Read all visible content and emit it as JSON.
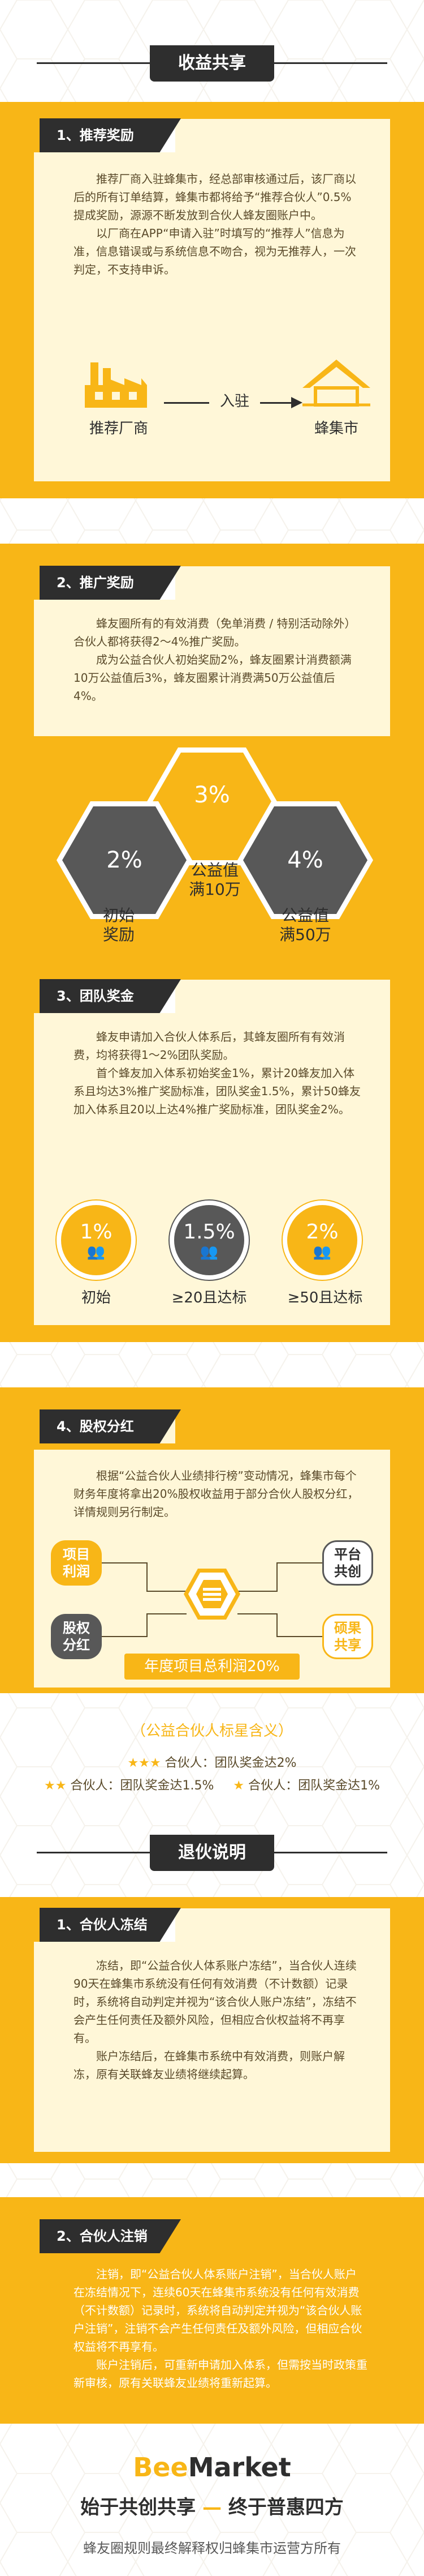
{
  "header": {
    "title": "收益共享"
  },
  "section1": {
    "tab": "1、推荐奖励",
    "paragraphs": [
      "推荐厂商入驻蜂集市，经总部审核通过后，该厂商以后的所有订单结算，蜂集市都将给予“推荐合伙人”0.5%提成奖励，源源不断发放到合伙人蜂友圈账户中。",
      "以厂商在APP“申请入驻”时填写的“推荐人”信息为准，信息错误或与系统信息不吻合，视为无推荐人，一次判定，不支持申诉。"
    ],
    "left_label": "推荐厂商",
    "arrow_label": "入驻",
    "right_label": "蜂集市"
  },
  "section2": {
    "tab": "2、推广奖励",
    "paragraphs": [
      "蜂友圈所有的有效消费（免单消费 / 特别活动除外）合伙人都将获得2～4%推广奖励。",
      "成为公益合伙人初始奖励2%，蜂友圈累计消费额满10万公益值后3%，蜂友圈累计消费满50万公益值后4%。"
    ],
    "hex_top": "3%",
    "hex_left": "2%",
    "hex_right": "4%",
    "label_left": [
      "初始",
      "奖励"
    ],
    "label_mid": [
      "公益值",
      "满10万"
    ],
    "label_right": [
      "公益值",
      "满50万"
    ]
  },
  "section3": {
    "tab": "3、团队奖金",
    "paragraphs": [
      "蜂友申请加入合伙人体系后，其蜂友圈所有有效消费，均将获得1～2%团队奖励。",
      "首个蜂友加入体系初始奖金1%，累计20蜂友加入体系且均达3%推广奖励标准，团队奖金1.5%，累计50蜂友加入体系且20以上达4%推广奖励标准，团队奖金2%。"
    ],
    "c1": "1%",
    "c2": "1.5%",
    "c3": "2%",
    "l1": "初始",
    "l2": "≥20且达标",
    "l3": "≥50且达标"
  },
  "section4": {
    "tab": "4、股权分红",
    "paragraphs": [
      "根据“公益合伙人业绩排行榜”变动情况，蜂集市每个财务年度将拿出20%股权收益用于部分合伙人股权分红，详情规则另行制定。"
    ],
    "left_top": [
      "项目",
      "利润"
    ],
    "left_bottom": [
      "股权",
      "分红"
    ],
    "right_top": [
      "平台",
      "共创"
    ],
    "right_bottom": [
      "硕果",
      "共享"
    ],
    "pill": "年度项目总利润20%"
  },
  "tier": {
    "title": "（公益合伙人标星含义）",
    "row1": "合伙人：团队奖金达2%",
    "row2a": "合伙人：团队奖金达1.5%",
    "row2b": "合伙人：团队奖金达1%"
  },
  "header2": {
    "title": "退伙说明"
  },
  "section5": {
    "tab": "1、合伙人冻结",
    "paragraphs": [
      "冻结，即“公益合伙人体系账户冻结”，当合伙人连续90天在蜂集市系统没有任何有效消费（不计数额）记录时，系统将自动判定并视为“该合伙人账户冻结”，冻结不会产生任何责任及额外风险，但相应合伙权益将不再享有。",
      "账户冻结后，在蜂集市系统中有效消费，则账户解冻，原有关联蜂友业绩将继续起算。"
    ]
  },
  "section6": {
    "tab": "2、合伙人注销",
    "paragraphs": [
      "注销，即“公益合伙人体系账户注销”，当合伙人账户在冻结情况下，连续60天在蜂集市系统没有任何有效消费（不计数额）记录时，系统将自动判定并视为“该合伙人账户注销”，注销不会产生任何责任及额外风险，但相应合伙权益将不再享有。",
      "账户注销后，可重新申请加入体系，但需按当时政策重新审核，原有关联蜂友业绩将重新起算。"
    ]
  },
  "footer": {
    "brand_bee": "Bee",
    "brand_market": "Market",
    "slogan_a": "始于共创共享",
    "slogan_dash": "—",
    "slogan_b": "终于普惠四方",
    "note": "蜂友圈规则最终解释权归蜂集市运营方所有"
  },
  "colors": {
    "yellow": "#f8b617",
    "dark": "#2e2e2e",
    "cream": "#fff7d8",
    "gray": "#585858"
  }
}
